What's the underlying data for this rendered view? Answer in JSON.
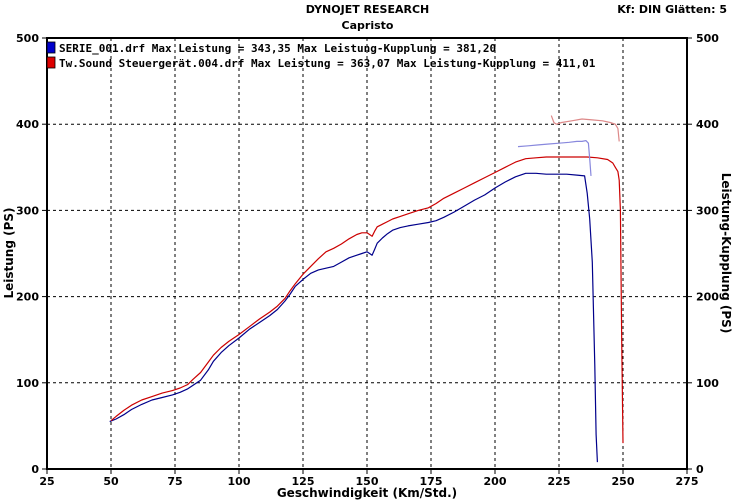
{
  "header": {
    "title": "DYNOJET RESEARCH",
    "subtitle": "Capristo",
    "settings": "Kf: DIN  Glätten: 5"
  },
  "chart_data": {
    "type": "line",
    "xlabel": "Geschwindigkeit (Km/Std.)",
    "ylabel": "Leistung (PS)",
    "ylabel_right": "Leistung-Kupplung (PS)",
    "xlim": [
      25,
      275
    ],
    "ylim": [
      0,
      500
    ],
    "xticks": [
      25,
      50,
      75,
      100,
      125,
      150,
      175,
      200,
      225,
      250,
      275
    ],
    "yticks": [
      0,
      100,
      200,
      300,
      400,
      500
    ],
    "grid": true,
    "legend_position": "top-left",
    "legend": [
      {
        "label": "SERIE_001.drf Max Leistung = 343,35    Max Leistung-Kupplung = 381,20",
        "color": "#0000cc"
      },
      {
        "label": "Tw.Sound Steuergerät.004.drf Max Leistung = 363,07    Max Leistung-Kupplung = 411,01",
        "color": "#dd0000"
      }
    ],
    "series": [
      {
        "name": "SERIE_001.drf",
        "measure": "Leistung",
        "color": "#00008b",
        "x": [
          49.5,
          52,
          55,
          58,
          62,
          66,
          70,
          74,
          77,
          80,
          82,
          85,
          88,
          90,
          93,
          96,
          100,
          104,
          108,
          112,
          115,
          118,
          120,
          122,
          125,
          128,
          131,
          134,
          137,
          140,
          143,
          146,
          148,
          150,
          151,
          152,
          153,
          154,
          156,
          158,
          160,
          163,
          166,
          170,
          174,
          177,
          180,
          184,
          188,
          192,
          196,
          200,
          204,
          208,
          212,
          216,
          220,
          224,
          228,
          232,
          235,
          236,
          237,
          238,
          239,
          239.5,
          240
        ],
        "y": [
          55,
          58,
          63,
          69,
          75,
          80,
          83,
          86,
          89,
          93,
          97,
          103,
          115,
          125,
          135,
          143,
          152,
          162,
          170,
          178,
          185,
          195,
          203,
          212,
          220,
          227,
          231,
          233,
          235,
          240,
          245,
          248,
          250,
          252,
          250,
          248,
          255,
          262,
          268,
          273,
          277,
          280,
          282,
          284,
          286,
          288,
          292,
          298,
          305,
          312,
          318,
          326,
          333,
          339,
          343,
          343,
          342,
          342,
          342,
          341,
          340,
          320,
          290,
          240,
          120,
          40,
          8
        ]
      },
      {
        "name": "Tw.Sound Steuergerät.004.drf",
        "measure": "Leistung",
        "color": "#cc0000",
        "x": [
          50,
          52,
          55,
          58,
          62,
          66,
          70,
          74,
          77,
          80,
          82,
          85,
          88,
          90,
          93,
          96,
          100,
          104,
          108,
          112,
          115,
          118,
          120,
          122,
          125,
          128,
          131,
          134,
          137,
          140,
          143,
          146,
          148,
          150,
          151,
          152,
          153,
          154,
          156,
          158,
          160,
          163,
          166,
          170,
          174,
          177,
          180,
          184,
          188,
          192,
          196,
          200,
          204,
          208,
          212,
          216,
          220,
          224,
          228,
          232,
          236,
          240,
          244,
          246,
          247,
          248,
          248.5,
          249,
          249.5,
          250
        ],
        "y": [
          56,
          61,
          68,
          74,
          80,
          84,
          88,
          91,
          94,
          98,
          104,
          112,
          124,
          132,
          141,
          148,
          156,
          165,
          174,
          182,
          189,
          198,
          207,
          215,
          226,
          235,
          244,
          252,
          256,
          261,
          267,
          272,
          274,
          274,
          272,
          270,
          276,
          281,
          284,
          287,
          290,
          293,
          296,
          300,
          303,
          308,
          314,
          320,
          326,
          332,
          338,
          344,
          350,
          356,
          360,
          361,
          362,
          362,
          362,
          362,
          362,
          361,
          359,
          355,
          350,
          345,
          335,
          300,
          150,
          30
        ]
      },
      {
        "name": "SERIE_001.drf",
        "measure": "Leistung-Kupplung",
        "color": "#8888dd",
        "x": [
          209,
          213,
          217,
          221,
          225,
          229,
          232,
          234,
          235.5,
          236.5,
          237,
          237.5
        ],
        "y": [
          374,
          375,
          376,
          377,
          378,
          379,
          380,
          380,
          381,
          378,
          360,
          340
        ]
      },
      {
        "name": "Tw.Sound Steuergerät.004.drf",
        "measure": "Leistung-Kupplung",
        "color": "#dd8888",
        "x": [
          222,
          223,
          224,
          226,
          230,
          234,
          238,
          242,
          245,
          247,
          248,
          248.5
        ],
        "y": [
          410,
          402,
          400,
          402,
          404,
          406,
          405,
          404,
          402,
          400,
          395,
          380
        ]
      }
    ]
  }
}
